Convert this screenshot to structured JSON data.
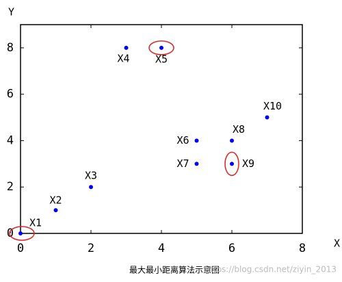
{
  "chart_data": {
    "type": "scatter",
    "title": "最大最小距离算法示意图",
    "x_label": "X",
    "y_label": "Y",
    "labels": [
      "X1",
      "X2",
      "X3",
      "X4",
      "X5",
      "X6",
      "X7",
      "X8",
      "X9",
      "X10"
    ],
    "x": [
      0,
      1,
      2,
      3,
      4,
      5,
      5,
      6,
      6,
      7
    ],
    "y": [
      0,
      1,
      2,
      8,
      8,
      4,
      3,
      4,
      3,
      5
    ],
    "circled": [
      true,
      false,
      false,
      false,
      true,
      false,
      false,
      false,
      true,
      false
    ],
    "color": "#0000ff",
    "circle_color": "#e02020",
    "xlim": [
      0,
      8
    ],
    "ylim": [
      0,
      9
    ],
    "xticks": [
      0,
      2,
      4,
      6,
      8
    ],
    "yticks": [
      0,
      2,
      4,
      6,
      8
    ]
  },
  "watermark": "https://blog.csdn.net/ziyin_2013"
}
